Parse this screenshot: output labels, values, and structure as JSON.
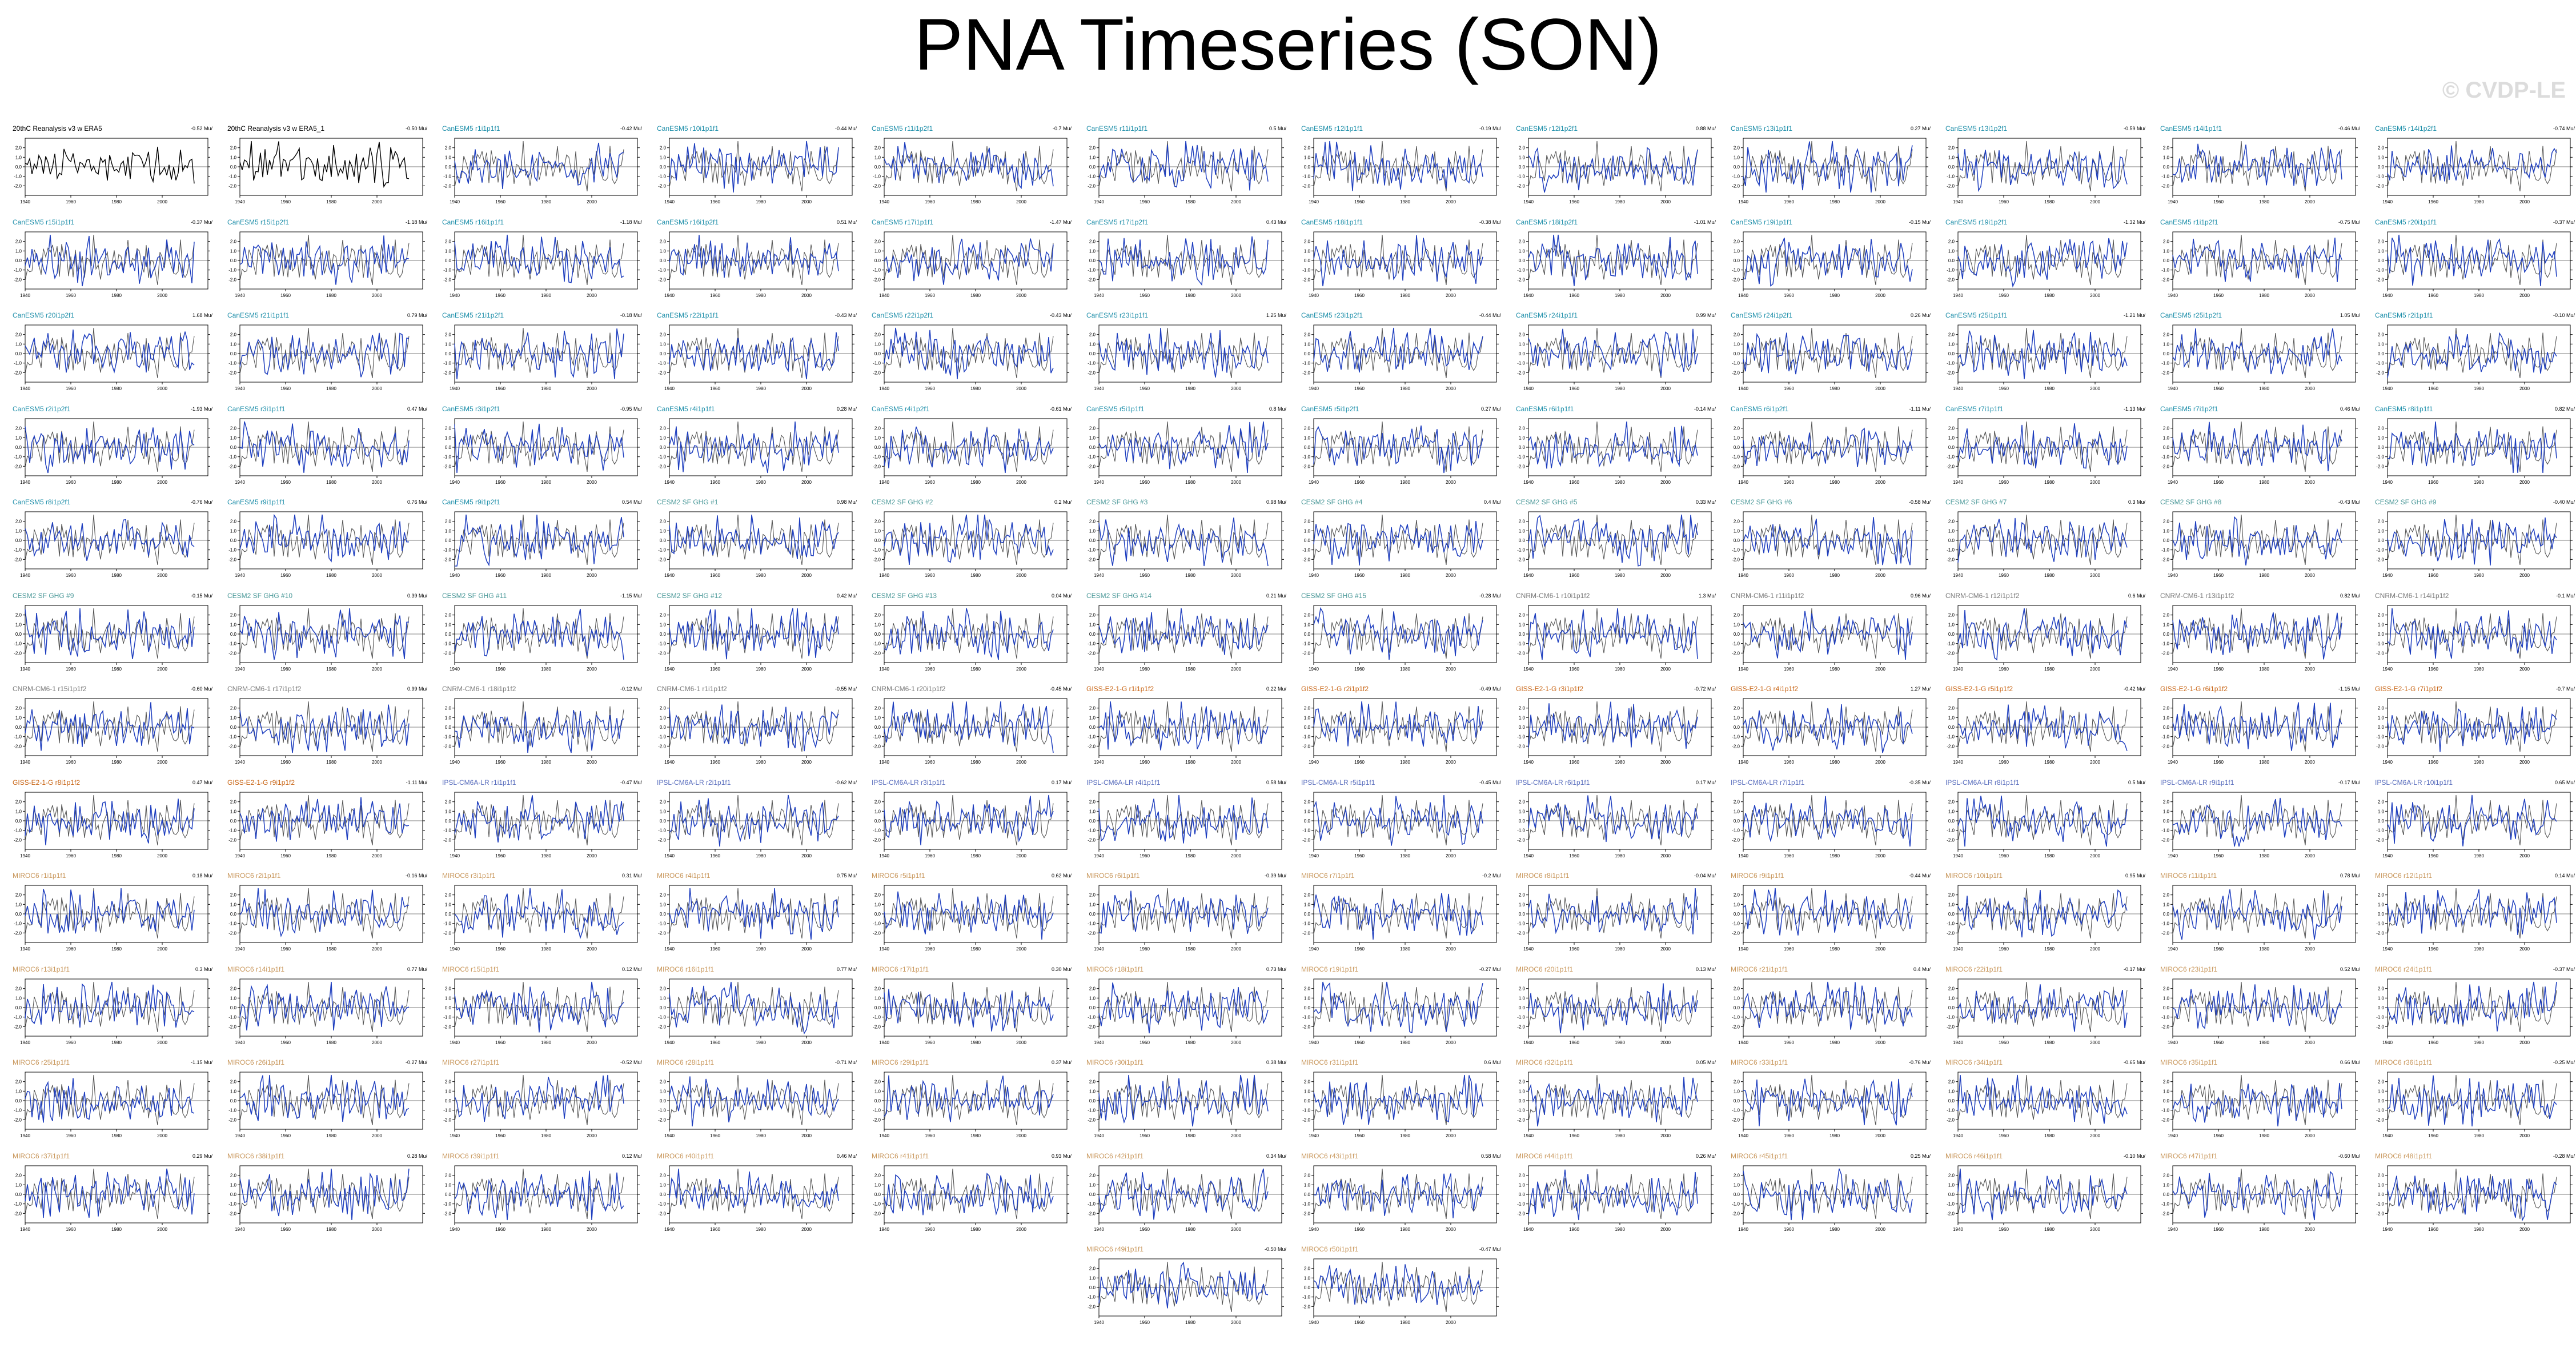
{
  "title": "PNA Timeseries (SON)",
  "watermark": "© CVDP-LE",
  "colors": {
    "obs_line": "#000000",
    "model_line": "#1f3fbf",
    "obs_overlay": "#555555",
    "title_obs": "#000000",
    "title_cesm2": "#1f8faa",
    "title_cesm_sf": "#4d9a9a",
    "title_cmip6": "#7a7a7a",
    "title_giss": "#c86414",
    "title_ipsl": "#5b6fbe",
    "title_miroc": "#c8965a"
  },
  "chart_data": {
    "type": "line",
    "layout": "small-multiples",
    "xlim": [
      1940,
      2020
    ],
    "ylim": [
      -3,
      3
    ],
    "x_ticks": [
      1940,
      1960,
      1980,
      2000
    ],
    "y_ticks": [
      2.0,
      1.0,
      0.0,
      -1.0,
      -2.0
    ],
    "y_tick_labels": [
      "2.0",
      "1.0",
      "0.0",
      "-1.0",
      "-2.0"
    ],
    "grid": false,
    "legend": "none",
    "series_note": "each panel shows the SON PNA index timeseries (one value per year); model panels overlay the observed series in gray",
    "panels": [
      {
        "title": "20thC Reanalysis v3 w ERA5",
        "trend": "-0.52 Mu/",
        "group": "obs"
      },
      {
        "title": "20thC Reanalysis v3 w ERA5_1",
        "trend": "-0.50 Mu/",
        "group": "obs"
      },
      {
        "title": "CanESM5 r1i1p1f1",
        "trend": "-0.42 Mu/",
        "group": "cesm2"
      },
      {
        "title": "CanESM5 r10i1p1f1",
        "trend": "-0.44 Mu/",
        "group": "cesm2"
      },
      {
        "title": "CanESM5 r11i1p2f1",
        "trend": "-0.7 Mu/",
        "group": "cesm2"
      },
      {
        "title": "CanESM5 r11i1p1f1",
        "trend": "0.5 Mu/",
        "group": "cesm2"
      },
      {
        "title": "CanESM5 r12i1p1f1",
        "trend": "-0.19 Mu/",
        "group": "cesm2"
      },
      {
        "title": "CanESM5 r12i1p2f1",
        "trend": "0.88 Mu/",
        "group": "cesm2"
      },
      {
        "title": "CanESM5 r13i1p1f1",
        "trend": "0.27 Mu/",
        "group": "cesm2"
      },
      {
        "title": "CanESM5 r13i1p2f1",
        "trend": "-0.59 Mu/",
        "group": "cesm2"
      },
      {
        "title": "CanESM5 r14i1p1f1",
        "trend": "-0.46 Mu/",
        "group": "cesm2"
      },
      {
        "title": "CanESM5 r14i1p2f1",
        "trend": "-0.74 Mu/",
        "group": "cesm2"
      },
      {
        "title": "CanESM5 r15i1p1f1",
        "trend": "-0.37 Mu/",
        "group": "cesm2"
      },
      {
        "title": "CanESM5 r15i1p2f1",
        "trend": "-1.18 Mu/",
        "group": "cesm2"
      },
      {
        "title": "CanESM5 r16i1p1f1",
        "trend": "-1.18 Mu/",
        "group": "cesm2"
      },
      {
        "title": "CanESM5 r16i1p2f1",
        "trend": "0.51 Mu/",
        "group": "cesm2"
      },
      {
        "title": "CanESM5 r17i1p1f1",
        "trend": "-1.47 Mu/",
        "group": "cesm2"
      },
      {
        "title": "CanESM5 r17i1p2f1",
        "trend": "0.43 Mu/",
        "group": "cesm2"
      },
      {
        "title": "CanESM5 r18i1p1f1",
        "trend": "-0.38 Mu/",
        "group": "cesm2"
      },
      {
        "title": "CanESM5 r18i1p2f1",
        "trend": "-1.01 Mu/",
        "group": "cesm2"
      },
      {
        "title": "CanESM5 r19i1p1f1",
        "trend": "-0.15 Mu/",
        "group": "cesm2"
      },
      {
        "title": "CanESM5 r19i1p2f1",
        "trend": "-1.32 Mu/",
        "group": "cesm2"
      },
      {
        "title": "CanESM5 r1i1p2f1",
        "trend": "-0.75 Mu/",
        "group": "cesm2"
      },
      {
        "title": "CanESM5 r20i1p1f1",
        "trend": "-0.37 Mu/",
        "group": "cesm2"
      },
      {
        "title": "CanESM5 r20i1p2f1",
        "trend": "1.68 Mu/",
        "group": "cesm2"
      },
      {
        "title": "CanESM5 r21i1p1f1",
        "trend": "0.79 Mu/",
        "group": "cesm2"
      },
      {
        "title": "CanESM5 r21i1p2f1",
        "trend": "-0.18 Mu/",
        "group": "cesm2"
      },
      {
        "title": "CanESM5 r22i1p1f1",
        "trend": "-0.43 Mu/",
        "group": "cesm2"
      },
      {
        "title": "CanESM5 r22i1p2f1",
        "trend": "-0.43 Mu/",
        "group": "cesm2"
      },
      {
        "title": "CanESM5 r23i1p1f1",
        "trend": "1.25 Mu/",
        "group": "cesm2"
      },
      {
        "title": "CanESM5 r23i1p2f1",
        "trend": "-0.44 Mu/",
        "group": "cesm2"
      },
      {
        "title": "CanESM5 r24i1p1f1",
        "trend": "0.99 Mu/",
        "group": "cesm2"
      },
      {
        "title": "CanESM5 r24i1p2f1",
        "trend": "0.26 Mu/",
        "group": "cesm2"
      },
      {
        "title": "CanESM5 r25i1p1f1",
        "trend": "-1.21 Mu/",
        "group": "cesm2"
      },
      {
        "title": "CanESM5 r25i1p2f1",
        "trend": "1.05 Mu/",
        "group": "cesm2"
      },
      {
        "title": "CanESM5 r2i1p1f1",
        "trend": "-0.10 Mu/",
        "group": "cesm2"
      },
      {
        "title": "CanESM5 r2i1p2f1",
        "trend": "-1.93 Mu/",
        "group": "cesm2"
      },
      {
        "title": "CanESM5 r3i1p1f1",
        "trend": "0.47 Mu/",
        "group": "cesm2"
      },
      {
        "title": "CanESM5 r3i1p2f1",
        "trend": "-0.95 Mu/",
        "group": "cesm2"
      },
      {
        "title": "CanESM5 r4i1p1f1",
        "trend": "0.28 Mu/",
        "group": "cesm2"
      },
      {
        "title": "CanESM5 r4i1p2f1",
        "trend": "-0.61 Mu/",
        "group": "cesm2"
      },
      {
        "title": "CanESM5 r5i1p1f1",
        "trend": "0.8 Mu/",
        "group": "cesm2"
      },
      {
        "title": "CanESM5 r5i1p2f1",
        "trend": "0.27 Mu/",
        "group": "cesm2"
      },
      {
        "title": "CanESM5 r6i1p1f1",
        "trend": "-0.14 Mu/",
        "group": "cesm2"
      },
      {
        "title": "CanESM5 r6i1p2f1",
        "trend": "-1.11 Mu/",
        "group": "cesm2"
      },
      {
        "title": "CanESM5 r7i1p1f1",
        "trend": "-1.13 Mu/",
        "group": "cesm2"
      },
      {
        "title": "CanESM5 r7i1p2f1",
        "trend": "0.46 Mu/",
        "group": "cesm2"
      },
      {
        "title": "CanESM5 r8i1p1f1",
        "trend": "0.82 Mu/",
        "group": "cesm2"
      },
      {
        "title": "CanESM5 r8i1p2f1",
        "trend": "-0.76 Mu/",
        "group": "cesm2"
      },
      {
        "title": "CanESM5 r9i1p1f1",
        "trend": "0.76 Mu/",
        "group": "cesm2"
      },
      {
        "title": "CanESM5 r9i1p2f1",
        "trend": "0.54 Mu/",
        "group": "cesm2"
      },
      {
        "title": "CESM2 SF GHG #1",
        "trend": "0.98 Mu/",
        "group": "cesm_sf"
      },
      {
        "title": "CESM2 SF GHG #2",
        "trend": "0.2 Mu/",
        "group": "cesm_sf"
      },
      {
        "title": "CESM2 SF GHG #3",
        "trend": "0.98 Mu/",
        "group": "cesm_sf"
      },
      {
        "title": "CESM2 SF GHG #4",
        "trend": "0.4 Mu/",
        "group": "cesm_sf"
      },
      {
        "title": "CESM2 SF GHG #5",
        "trend": "0.33 Mu/",
        "group": "cesm_sf"
      },
      {
        "title": "CESM2 SF GHG #6",
        "trend": "-0.58 Mu/",
        "group": "cesm_sf"
      },
      {
        "title": "CESM2 SF GHG #7",
        "trend": "0.3 Mu/",
        "group": "cesm_sf"
      },
      {
        "title": "CESM2 SF GHG #8",
        "trend": "-0.43 Mu/",
        "group": "cesm_sf"
      },
      {
        "title": "CESM2 SF GHG #9",
        "trend": "-0.40 Mu/",
        "group": "cesm_sf"
      },
      {
        "title": "CESM2 SF GHG #9",
        "trend": "-0.15 Mu/",
        "group": "cesm_sf"
      },
      {
        "title": "CESM2 SF GHG #10",
        "trend": "0.39 Mu/",
        "group": "cesm_sf"
      },
      {
        "title": "CESM2 SF GHG #11",
        "trend": "-1.15 Mu/",
        "group": "cesm_sf"
      },
      {
        "title": "CESM2 SF GHG #12",
        "trend": "0.42 Mu/",
        "group": "cesm_sf"
      },
      {
        "title": "CESM2 SF GHG #13",
        "trend": "0.04 Mu/",
        "group": "cesm_sf"
      },
      {
        "title": "CESM2 SF GHG #14",
        "trend": "0.21 Mu/",
        "group": "cesm_sf"
      },
      {
        "title": "CESM2 SF GHG #15",
        "trend": "-0.28 Mu/",
        "group": "cesm_sf"
      },
      {
        "title": "CNRM-CM6-1 r10i1p1f2",
        "trend": "1.3 Mu/",
        "group": "cmip6"
      },
      {
        "title": "CNRM-CM6-1 r11i1p1f2",
        "trend": "0.96 Mu/",
        "group": "cmip6"
      },
      {
        "title": "CNRM-CM6-1 r12i1p1f2",
        "trend": "0.6 Mu/",
        "group": "cmip6"
      },
      {
        "title": "CNRM-CM6-1 r13i1p1f2",
        "trend": "0.82 Mu/",
        "group": "cmip6"
      },
      {
        "title": "CNRM-CM6-1 r14i1p1f2",
        "trend": "-0.1 Mu/",
        "group": "cmip6"
      },
      {
        "title": "CNRM-CM6-1 r15i1p1f2",
        "trend": "-0.60 Mu/",
        "group": "cmip6"
      },
      {
        "title": "CNRM-CM6-1 r17i1p1f2",
        "trend": "0.99 Mu/",
        "group": "cmip6"
      },
      {
        "title": "CNRM-CM6-1 r18i1p1f2",
        "trend": "-0.12 Mu/",
        "group": "cmip6"
      },
      {
        "title": "CNRM-CM6-1 r1i1p1f2",
        "trend": "-0.55 Mu/",
        "group": "cmip6"
      },
      {
        "title": "CNRM-CM6-1 r20i1p1f2",
        "trend": "-0.45 Mu/",
        "group": "cmip6"
      },
      {
        "title": "GISS-E2-1-G r1i1p1f2",
        "trend": "0.22 Mu/",
        "group": "giss"
      },
      {
        "title": "GISS-E2-1-G r2i1p1f2",
        "trend": "-0.49 Mu/",
        "group": "giss"
      },
      {
        "title": "GISS-E2-1-G r3i1p1f2",
        "trend": "-0.72 Mu/",
        "group": "giss"
      },
      {
        "title": "GISS-E2-1-G r4i1p1f2",
        "trend": "1.27 Mu/",
        "group": "giss"
      },
      {
        "title": "GISS-E2-1-G r5i1p1f2",
        "trend": "-0.42 Mu/",
        "group": "giss"
      },
      {
        "title": "GISS-E2-1-G r6i1p1f2",
        "trend": "-1.15 Mu/",
        "group": "giss"
      },
      {
        "title": "GISS-E2-1-G r7i1p1f2",
        "trend": "-0.7 Mu/",
        "group": "giss"
      },
      {
        "title": "GISS-E2-1-G r8i1p1f2",
        "trend": "0.47 Mu/",
        "group": "giss"
      },
      {
        "title": "GISS-E2-1-G r9i1p1f2",
        "trend": "-1.11 Mu/",
        "group": "giss"
      },
      {
        "title": "IPSL-CM6A-LR r1i1p1f1",
        "trend": "-0.47 Mu/",
        "group": "ipsl"
      },
      {
        "title": "IPSL-CM6A-LR r2i1p1f1",
        "trend": "-0.62 Mu/",
        "group": "ipsl"
      },
      {
        "title": "IPSL-CM6A-LR r3i1p1f1",
        "trend": "0.17 Mu/",
        "group": "ipsl"
      },
      {
        "title": "IPSL-CM6A-LR r4i1p1f1",
        "trend": "0.58 Mu/",
        "group": "ipsl"
      },
      {
        "title": "IPSL-CM6A-LR r5i1p1f1",
        "trend": "-0.45 Mu/",
        "group": "ipsl"
      },
      {
        "title": "IPSL-CM6A-LR r6i1p1f1",
        "trend": "0.17 Mu/",
        "group": "ipsl"
      },
      {
        "title": "IPSL-CM6A-LR r7i1p1f1",
        "trend": "-0.35 Mu/",
        "group": "ipsl"
      },
      {
        "title": "IPSL-CM6A-LR r8i1p1f1",
        "trend": "0.5 Mu/",
        "group": "ipsl"
      },
      {
        "title": "IPSL-CM6A-LR r9i1p1f1",
        "trend": "-0.17 Mu/",
        "group": "ipsl"
      },
      {
        "title": "IPSL-CM6A-LR r10i1p1f1",
        "trend": "0.65 Mu/",
        "group": "ipsl"
      },
      {
        "title": "MIROC6 r1i1p1f1",
        "trend": "0.18 Mu/",
        "group": "miroc"
      },
      {
        "title": "MIROC6 r2i1p1f1",
        "trend": "-0.16 Mu/",
        "group": "miroc"
      },
      {
        "title": "MIROC6 r3i1p1f1",
        "trend": "0.31 Mu/",
        "group": "miroc"
      },
      {
        "title": "MIROC6 r4i1p1f1",
        "trend": "0.75 Mu/",
        "group": "miroc"
      },
      {
        "title": "MIROC6 r5i1p1f1",
        "trend": "0.62 Mu/",
        "group": "miroc"
      },
      {
        "title": "MIROC6 r6i1p1f1",
        "trend": "-0.39 Mu/",
        "group": "miroc"
      },
      {
        "title": "MIROC6 r7i1p1f1",
        "trend": "-0.2 Mu/",
        "group": "miroc"
      },
      {
        "title": "MIROC6 r8i1p1f1",
        "trend": "-0.04 Mu/",
        "group": "miroc"
      },
      {
        "title": "MIROC6 r9i1p1f1",
        "trend": "-0.44 Mu/",
        "group": "miroc"
      },
      {
        "title": "MIROC6 r10i1p1f1",
        "trend": "0.95 Mu/",
        "group": "miroc"
      },
      {
        "title": "MIROC6 r11i1p1f1",
        "trend": "0.78 Mu/",
        "group": "miroc"
      },
      {
        "title": "MIROC6 r12i1p1f1",
        "trend": "0.14 Mu/",
        "group": "miroc"
      },
      {
        "title": "MIROC6 r13i1p1f1",
        "trend": "0.3 Mu/",
        "group": "miroc"
      },
      {
        "title": "MIROC6 r14i1p1f1",
        "trend": "0.77 Mu/",
        "group": "miroc"
      },
      {
        "title": "MIROC6 r15i1p1f1",
        "trend": "0.12 Mu/",
        "group": "miroc"
      },
      {
        "title": "MIROC6 r16i1p1f1",
        "trend": "0.77 Mu/",
        "group": "miroc"
      },
      {
        "title": "MIROC6 r17i1p1f1",
        "trend": "0.30 Mu/",
        "group": "miroc"
      },
      {
        "title": "MIROC6 r18i1p1f1",
        "trend": "0.73 Mu/",
        "group": "miroc"
      },
      {
        "title": "MIROC6 r19i1p1f1",
        "trend": "-0.27 Mu/",
        "group": "miroc"
      },
      {
        "title": "MIROC6 r20i1p1f1",
        "trend": "0.13 Mu/",
        "group": "miroc"
      },
      {
        "title": "MIROC6 r21i1p1f1",
        "trend": "0.4 Mu/",
        "group": "miroc"
      },
      {
        "title": "MIROC6 r22i1p1f1",
        "trend": "-0.17 Mu/",
        "group": "miroc"
      },
      {
        "title": "MIROC6 r23i1p1f1",
        "trend": "0.52 Mu/",
        "group": "miroc"
      },
      {
        "title": "MIROC6 r24i1p1f1",
        "trend": "-0.37 Mu/",
        "group": "miroc"
      },
      {
        "title": "MIROC6 r25i1p1f1",
        "trend": "-1.15 Mu/",
        "group": "miroc"
      },
      {
        "title": "MIROC6 r26i1p1f1",
        "trend": "-0.27 Mu/",
        "group": "miroc"
      },
      {
        "title": "MIROC6 r27i1p1f1",
        "trend": "-0.52 Mu/",
        "group": "miroc"
      },
      {
        "title": "MIROC6 r28i1p1f1",
        "trend": "-0.71 Mu/",
        "group": "miroc"
      },
      {
        "title": "MIROC6 r29i1p1f1",
        "trend": "0.37 Mu/",
        "group": "miroc"
      },
      {
        "title": "MIROC6 r30i1p1f1",
        "trend": "0.38 Mu/",
        "group": "miroc"
      },
      {
        "title": "MIROC6 r31i1p1f1",
        "trend": "0.6 Mu/",
        "group": "miroc"
      },
      {
        "title": "MIROC6 r32i1p1f1",
        "trend": "0.05 Mu/",
        "group": "miroc"
      },
      {
        "title": "MIROC6 r33i1p1f1",
        "trend": "-0.76 Mu/",
        "group": "miroc"
      },
      {
        "title": "MIROC6 r34i1p1f1",
        "trend": "-0.65 Mu/",
        "group": "miroc"
      },
      {
        "title": "MIROC6 r35i1p1f1",
        "trend": "0.66 Mu/",
        "group": "miroc"
      },
      {
        "title": "MIROC6 r36i1p1f1",
        "trend": "-0.25 Mu/",
        "group": "miroc"
      },
      {
        "title": "MIROC6 r37i1p1f1",
        "trend": "0.29 Mu/",
        "group": "miroc"
      },
      {
        "title": "MIROC6 r38i1p1f1",
        "trend": "0.28 Mu/",
        "group": "miroc"
      },
      {
        "title": "MIROC6 r39i1p1f1",
        "trend": "0.12 Mu/",
        "group": "miroc"
      },
      {
        "title": "MIROC6 r40i1p1f1",
        "trend": "0.46 Mu/",
        "group": "miroc"
      },
      {
        "title": "MIROC6 r41i1p1f1",
        "trend": "0.93 Mu/",
        "group": "miroc"
      },
      {
        "title": "MIROC6 r42i1p1f1",
        "trend": "0.34 Mu/",
        "group": "miroc"
      },
      {
        "title": "MIROC6 r43i1p1f1",
        "trend": "0.58 Mu/",
        "group": "miroc"
      },
      {
        "title": "MIROC6 r44i1p1f1",
        "trend": "0.26 Mu/",
        "group": "miroc"
      },
      {
        "title": "MIROC6 r45i1p1f1",
        "trend": "0.25 Mu/",
        "group": "miroc"
      },
      {
        "title": "MIROC6 r46i1p1f1",
        "trend": "-0.10 Mu/",
        "group": "miroc"
      },
      {
        "title": "MIROC6 r47i1p1f1",
        "trend": "-0.60 Mu/",
        "group": "miroc"
      },
      {
        "title": "MIROC6 r48i1p1f1",
        "trend": "-0.28 Mu/",
        "group": "miroc"
      },
      {
        "title": "MIROC6 r49i1p1f1",
        "trend": "-0.50 Mu/",
        "group": "miroc"
      },
      {
        "title": "MIROC6 r50i1p1f1",
        "trend": "-0.47 Mu/",
        "group": "miroc"
      }
    ]
  }
}
